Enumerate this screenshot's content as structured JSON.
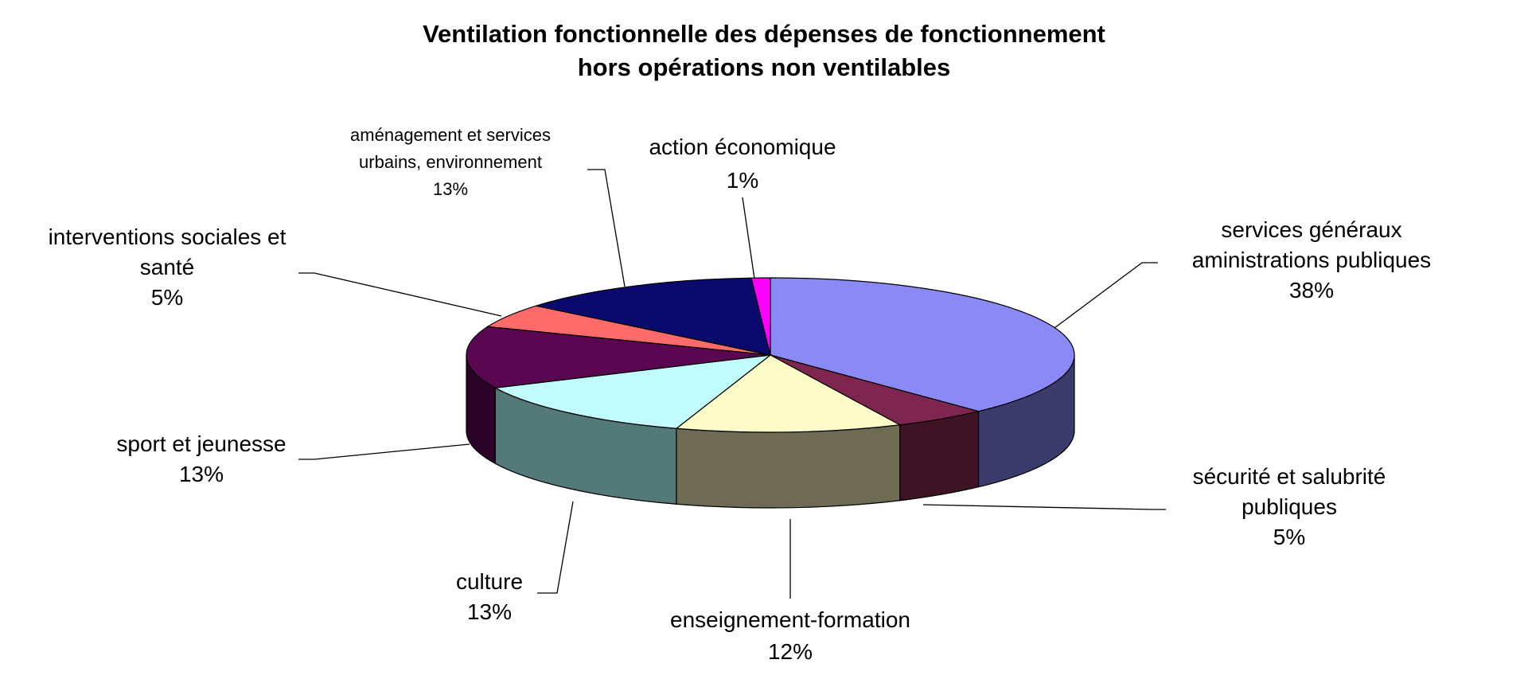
{
  "chart_data": {
    "type": "pie",
    "title_line1": "Ventilation fonctionnelle des dépenses de fonctionnement",
    "title_line2": "hors opérations non ventilables",
    "slices": [
      {
        "key": "services",
        "label_lines": [
          "services généraux",
          "aministrations publiques"
        ],
        "value_label": "38%",
        "value": 38,
        "color": "#8a89f6",
        "side": "#3c3c6c"
      },
      {
        "key": "securite",
        "label_lines": [
          "sécurité et salubrité",
          "publiques"
        ],
        "value_label": "5%",
        "value": 5,
        "color": "#7e2550",
        "side": "#3e1324"
      },
      {
        "key": "enseignement",
        "label_lines": [
          "enseignement-formation"
        ],
        "value_label": "12%",
        "value": 12,
        "color": "#fdfbc7",
        "side": "#6e6b55"
      },
      {
        "key": "culture",
        "label_lines": [
          "culture"
        ],
        "value_label": "13%",
        "value": 13,
        "color": "#c2fbfd",
        "side": "#537a79"
      },
      {
        "key": "sport",
        "label_lines": [
          "sport et jeunesse"
        ],
        "value_label": "13%",
        "value": 13,
        "color": "#5a0651",
        "side": "#2c0328"
      },
      {
        "key": "interventions",
        "label_lines": [
          "interventions sociales et",
          "santé"
        ],
        "value_label": "5%",
        "value": 5,
        "color": "#ff6a6a",
        "side": "#7a3030"
      },
      {
        "key": "amenagement",
        "label_lines": [
          "aménagement et services",
          "urbains, environnement"
        ],
        "value_label": "13%",
        "value": 13,
        "color": "#0a0a6e",
        "side": "#050538"
      },
      {
        "key": "action",
        "label_lines": [
          "action économique"
        ],
        "value_label": "1%",
        "value": 1,
        "color": "#ff00ff",
        "side": "#800080"
      }
    ]
  }
}
